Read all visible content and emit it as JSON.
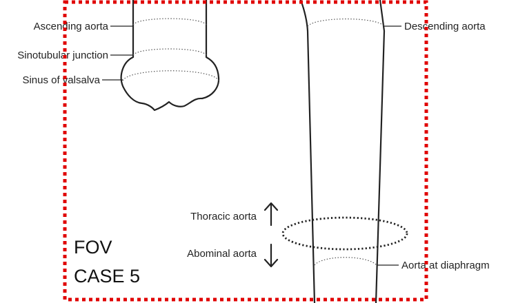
{
  "labels": {
    "ascending_aorta": "Ascending aorta",
    "sinotubular_junction": "Sinotubular junction",
    "sinus_of_valsalva": "Sinus of valsalva",
    "descending_aorta": "Descending aorta",
    "thoracic_aorta": "Thoracic aorta",
    "abdominal_aorta": "Abominal aorta",
    "aorta_at_diaphragm": "Aorta at diaphragm"
  },
  "fov": {
    "line1": "FOV",
    "line2": "CASE 5"
  },
  "colors": {
    "fov_box": "#e00000",
    "anatomy": "#222222"
  },
  "icons": {
    "up": "arrow-up-icon",
    "down": "arrow-down-icon"
  }
}
